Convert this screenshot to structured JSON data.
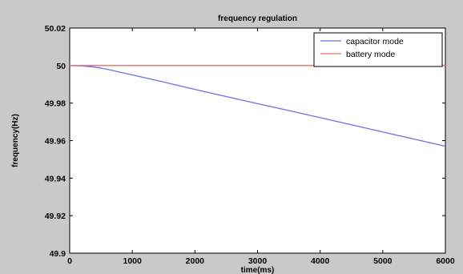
{
  "chart_data": {
    "type": "line",
    "title": "frequency regulation",
    "xlabel": "time(ms)",
    "ylabel": "frequency(Hz)",
    "xlim": [
      0,
      6000
    ],
    "ylim": [
      49.9,
      50.02
    ],
    "xticks": [
      0,
      1000,
      2000,
      3000,
      4000,
      5000,
      6000
    ],
    "xtick_labels": [
      "0",
      "1000",
      "2000",
      "3000",
      "4000",
      "5000",
      "6000"
    ],
    "yticks": [
      49.9,
      49.92,
      49.94,
      49.96,
      49.98,
      50,
      50.02
    ],
    "ytick_labels": [
      "49.9",
      "49.92",
      "49.94",
      "49.96",
      "49.98",
      "50",
      "50.02"
    ],
    "grid": false,
    "legend_position": "top-right",
    "series": [
      {
        "name": "capacitor mode",
        "color": "#6f6fe8",
        "x": [
          0,
          200,
          400,
          600,
          800,
          1000,
          1500,
          2000,
          2500,
          3000,
          3500,
          4000,
          4500,
          5000,
          5500,
          6000
        ],
        "y": [
          50.0,
          49.9998,
          49.9992,
          49.998,
          49.9965,
          49.995,
          49.9912,
          49.9873,
          49.9835,
          49.9797,
          49.976,
          49.9722,
          49.9684,
          49.9646,
          49.9608,
          49.957
        ]
      },
      {
        "name": "battery mode",
        "color": "#e8706f",
        "x": [
          0,
          6000
        ],
        "y": [
          50.0,
          50.0
        ]
      }
    ]
  }
}
